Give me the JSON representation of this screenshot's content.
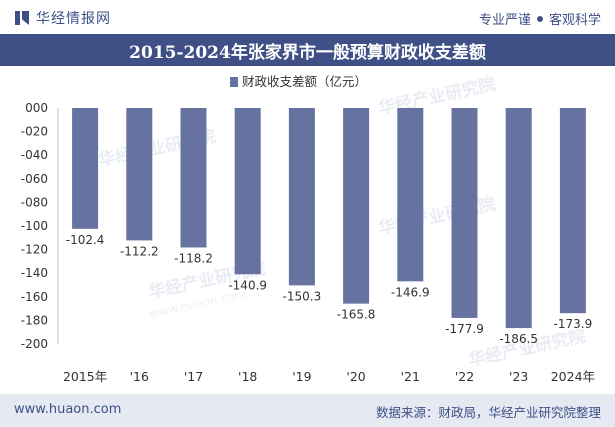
{
  "header": {
    "brand": "华经情报网",
    "tagline_left": "专业严谨",
    "tagline_right": "客观科学"
  },
  "footer": {
    "website": "www.huaon.com",
    "source": "数据来源：财政局，华经产业研究院整理"
  },
  "colors": {
    "brand": "#3f5086",
    "bar": "#6673a0",
    "footer_bg": "#e4e9f2"
  },
  "watermarks": [
    "华经产业研究院",
    "www.huaon.com"
  ],
  "chart_data": {
    "type": "bar",
    "title": "2015-2024年张家界市一般预算财政收支差额",
    "categories": [
      "2015年",
      "'16",
      "'17",
      "'18",
      "'19",
      "'20",
      "'21",
      "'22",
      "'23",
      "2024年"
    ],
    "series": [
      {
        "name": "财政收支差额（亿元）",
        "values": [
          -102.4,
          -112.2,
          -118.2,
          -140.9,
          -150.3,
          -165.8,
          -146.9,
          -177.9,
          -186.5,
          -173.9
        ],
        "labels": [
          "-102.4",
          "-112.2",
          "-118.2",
          "-140.9",
          "-150.3",
          "-165.8",
          "-146.9",
          "-177.9",
          "-186.5",
          "-173.9"
        ]
      }
    ],
    "ylim": [
      -200,
      0
    ],
    "yticks": [
      "000",
      "-020",
      "-040",
      "-060",
      "-080",
      "-100",
      "-120",
      "-140",
      "-160",
      "-180",
      "-200"
    ],
    "legend_position": "top-center",
    "grid": false
  }
}
